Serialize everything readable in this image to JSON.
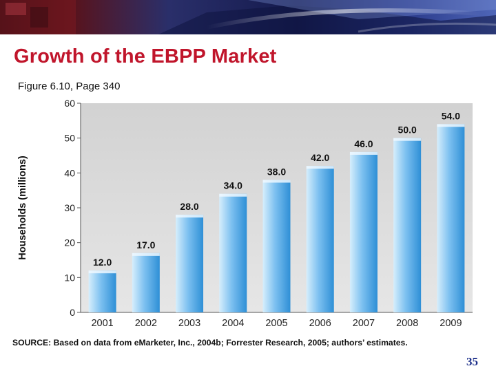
{
  "slide": {
    "title": "Growth of the EBPP Market",
    "subtitle": "Figure 6.10, Page 340",
    "source_note": "SOURCE: Based on data from eMarketer, Inc., 2004b; Forrester Research, 2005; authors’ estimates.",
    "page_number": "35"
  },
  "colors": {
    "title": "#c0152b",
    "bar_light": "#d6eefc",
    "bar_dark": "#2e8fd6",
    "plot_bg": "#dcdcdc",
    "page_number": "#1c2f8a"
  },
  "chart_data": {
    "type": "bar",
    "title": "",
    "xlabel": "",
    "ylabel": "Households (millions)",
    "categories": [
      "2001",
      "2002",
      "2003",
      "2004",
      "2005",
      "2006",
      "2007",
      "2008",
      "2009"
    ],
    "values": [
      12.0,
      17.0,
      28.0,
      34.0,
      38.0,
      42.0,
      46.0,
      50.0,
      54.0
    ],
    "value_labels": [
      "12.0",
      "17.0",
      "28.0",
      "34.0",
      "38.0",
      "42.0",
      "46.0",
      "50.0",
      "54.0"
    ],
    "ylim": [
      0,
      60
    ],
    "yticks": [
      0,
      10,
      20,
      30,
      40,
      50,
      60
    ],
    "grid": false
  }
}
